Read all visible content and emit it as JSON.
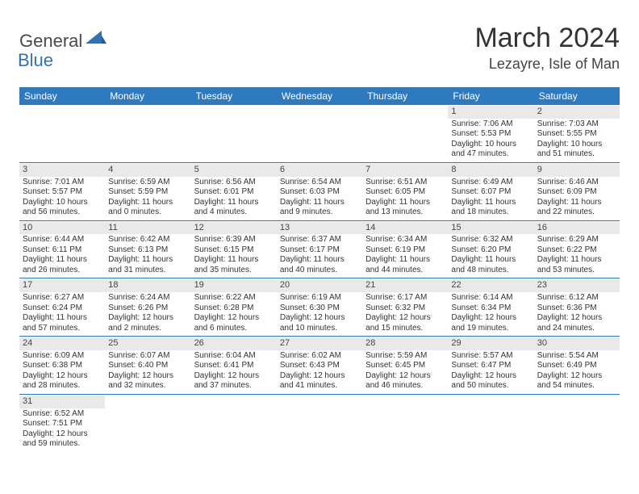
{
  "logo": {
    "part1": "General",
    "part2": "Blue"
  },
  "title": "March 2024",
  "location": "Lezayre, Isle of Man",
  "colors": {
    "header_bg": "#2f79bf",
    "accent": "#2f73b5",
    "daynum_bg": "#e9e9e9",
    "text": "#333333"
  },
  "weekdays": [
    "Sunday",
    "Monday",
    "Tuesday",
    "Wednesday",
    "Thursday",
    "Friday",
    "Saturday"
  ],
  "weeks": [
    [
      null,
      null,
      null,
      null,
      null,
      {
        "num": "1",
        "sunrise": "Sunrise: 7:06 AM",
        "sunset": "Sunset: 5:53 PM",
        "daylight": "Daylight: 10 hours and 47 minutes."
      },
      {
        "num": "2",
        "sunrise": "Sunrise: 7:03 AM",
        "sunset": "Sunset: 5:55 PM",
        "daylight": "Daylight: 10 hours and 51 minutes."
      }
    ],
    [
      {
        "num": "3",
        "sunrise": "Sunrise: 7:01 AM",
        "sunset": "Sunset: 5:57 PM",
        "daylight": "Daylight: 10 hours and 56 minutes."
      },
      {
        "num": "4",
        "sunrise": "Sunrise: 6:59 AM",
        "sunset": "Sunset: 5:59 PM",
        "daylight": "Daylight: 11 hours and 0 minutes."
      },
      {
        "num": "5",
        "sunrise": "Sunrise: 6:56 AM",
        "sunset": "Sunset: 6:01 PM",
        "daylight": "Daylight: 11 hours and 4 minutes."
      },
      {
        "num": "6",
        "sunrise": "Sunrise: 6:54 AM",
        "sunset": "Sunset: 6:03 PM",
        "daylight": "Daylight: 11 hours and 9 minutes."
      },
      {
        "num": "7",
        "sunrise": "Sunrise: 6:51 AM",
        "sunset": "Sunset: 6:05 PM",
        "daylight": "Daylight: 11 hours and 13 minutes."
      },
      {
        "num": "8",
        "sunrise": "Sunrise: 6:49 AM",
        "sunset": "Sunset: 6:07 PM",
        "daylight": "Daylight: 11 hours and 18 minutes."
      },
      {
        "num": "9",
        "sunrise": "Sunrise: 6:46 AM",
        "sunset": "Sunset: 6:09 PM",
        "daylight": "Daylight: 11 hours and 22 minutes."
      }
    ],
    [
      {
        "num": "10",
        "sunrise": "Sunrise: 6:44 AM",
        "sunset": "Sunset: 6:11 PM",
        "daylight": "Daylight: 11 hours and 26 minutes."
      },
      {
        "num": "11",
        "sunrise": "Sunrise: 6:42 AM",
        "sunset": "Sunset: 6:13 PM",
        "daylight": "Daylight: 11 hours and 31 minutes."
      },
      {
        "num": "12",
        "sunrise": "Sunrise: 6:39 AM",
        "sunset": "Sunset: 6:15 PM",
        "daylight": "Daylight: 11 hours and 35 minutes."
      },
      {
        "num": "13",
        "sunrise": "Sunrise: 6:37 AM",
        "sunset": "Sunset: 6:17 PM",
        "daylight": "Daylight: 11 hours and 40 minutes."
      },
      {
        "num": "14",
        "sunrise": "Sunrise: 6:34 AM",
        "sunset": "Sunset: 6:19 PM",
        "daylight": "Daylight: 11 hours and 44 minutes."
      },
      {
        "num": "15",
        "sunrise": "Sunrise: 6:32 AM",
        "sunset": "Sunset: 6:20 PM",
        "daylight": "Daylight: 11 hours and 48 minutes."
      },
      {
        "num": "16",
        "sunrise": "Sunrise: 6:29 AM",
        "sunset": "Sunset: 6:22 PM",
        "daylight": "Daylight: 11 hours and 53 minutes."
      }
    ],
    [
      {
        "num": "17",
        "sunrise": "Sunrise: 6:27 AM",
        "sunset": "Sunset: 6:24 PM",
        "daylight": "Daylight: 11 hours and 57 minutes."
      },
      {
        "num": "18",
        "sunrise": "Sunrise: 6:24 AM",
        "sunset": "Sunset: 6:26 PM",
        "daylight": "Daylight: 12 hours and 2 minutes."
      },
      {
        "num": "19",
        "sunrise": "Sunrise: 6:22 AM",
        "sunset": "Sunset: 6:28 PM",
        "daylight": "Daylight: 12 hours and 6 minutes."
      },
      {
        "num": "20",
        "sunrise": "Sunrise: 6:19 AM",
        "sunset": "Sunset: 6:30 PM",
        "daylight": "Daylight: 12 hours and 10 minutes."
      },
      {
        "num": "21",
        "sunrise": "Sunrise: 6:17 AM",
        "sunset": "Sunset: 6:32 PM",
        "daylight": "Daylight: 12 hours and 15 minutes."
      },
      {
        "num": "22",
        "sunrise": "Sunrise: 6:14 AM",
        "sunset": "Sunset: 6:34 PM",
        "daylight": "Daylight: 12 hours and 19 minutes."
      },
      {
        "num": "23",
        "sunrise": "Sunrise: 6:12 AM",
        "sunset": "Sunset: 6:36 PM",
        "daylight": "Daylight: 12 hours and 24 minutes."
      }
    ],
    [
      {
        "num": "24",
        "sunrise": "Sunrise: 6:09 AM",
        "sunset": "Sunset: 6:38 PM",
        "daylight": "Daylight: 12 hours and 28 minutes."
      },
      {
        "num": "25",
        "sunrise": "Sunrise: 6:07 AM",
        "sunset": "Sunset: 6:40 PM",
        "daylight": "Daylight: 12 hours and 32 minutes."
      },
      {
        "num": "26",
        "sunrise": "Sunrise: 6:04 AM",
        "sunset": "Sunset: 6:41 PM",
        "daylight": "Daylight: 12 hours and 37 minutes."
      },
      {
        "num": "27",
        "sunrise": "Sunrise: 6:02 AM",
        "sunset": "Sunset: 6:43 PM",
        "daylight": "Daylight: 12 hours and 41 minutes."
      },
      {
        "num": "28",
        "sunrise": "Sunrise: 5:59 AM",
        "sunset": "Sunset: 6:45 PM",
        "daylight": "Daylight: 12 hours and 46 minutes."
      },
      {
        "num": "29",
        "sunrise": "Sunrise: 5:57 AM",
        "sunset": "Sunset: 6:47 PM",
        "daylight": "Daylight: 12 hours and 50 minutes."
      },
      {
        "num": "30",
        "sunrise": "Sunrise: 5:54 AM",
        "sunset": "Sunset: 6:49 PM",
        "daylight": "Daylight: 12 hours and 54 minutes."
      }
    ],
    [
      {
        "num": "31",
        "sunrise": "Sunrise: 6:52 AM",
        "sunset": "Sunset: 7:51 PM",
        "daylight": "Daylight: 12 hours and 59 minutes."
      },
      null,
      null,
      null,
      null,
      null,
      null
    ]
  ]
}
